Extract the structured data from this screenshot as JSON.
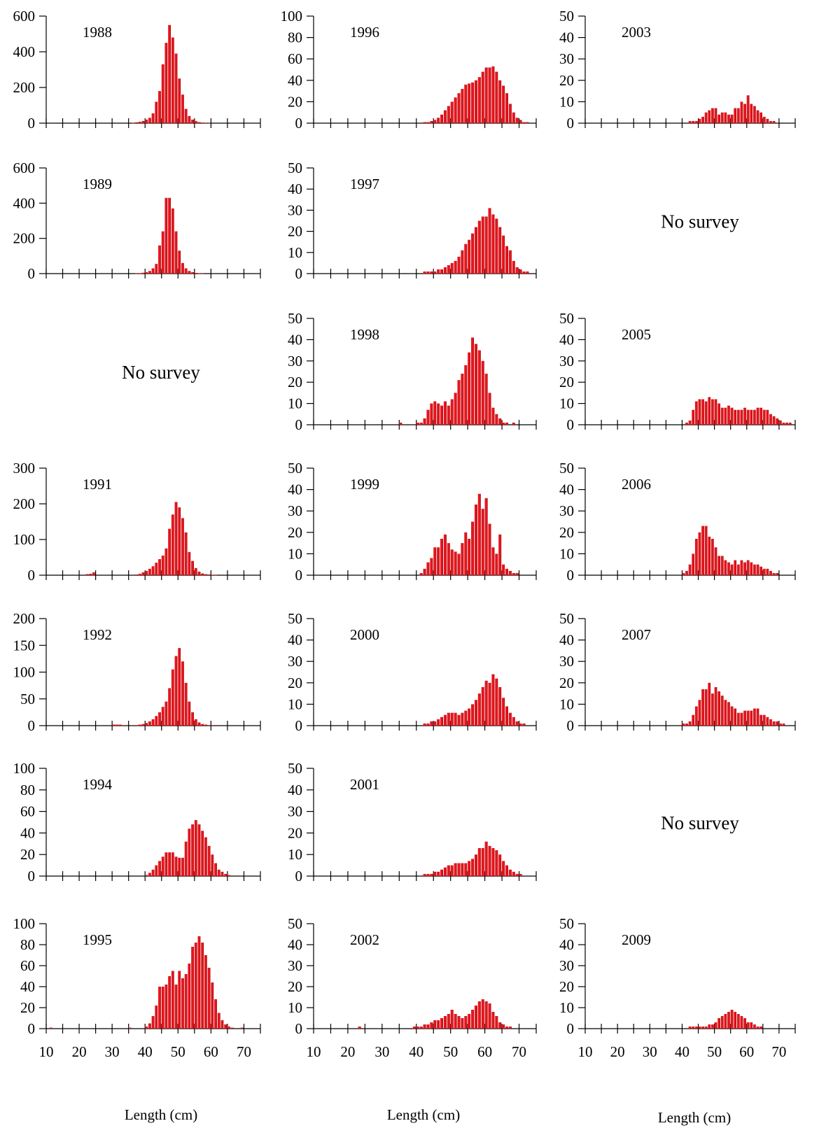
{
  "figure": {
    "bar_color": "#e8141c",
    "bar_edge_color": "#8b0000",
    "xlabel": "Length (cm)",
    "x_ticks": [
      10,
      20,
      30,
      40,
      50,
      60,
      70
    ],
    "no_survey_text": "No survey"
  },
  "chart_data": [
    {
      "type": "bar",
      "title": "1988",
      "col": 0,
      "row": 0,
      "bin_start": 10,
      "bin_width": 1,
      "ylim": [
        0,
        600
      ],
      "yticks": [
        0,
        200,
        400,
        600
      ],
      "show_x_labels": false,
      "values": [
        0,
        0,
        0,
        0,
        0,
        0,
        0,
        0,
        0,
        0,
        0,
        0,
        0,
        0,
        0,
        0,
        0,
        0,
        0,
        0,
        0,
        0,
        0,
        0,
        0,
        0,
        2,
        5,
        8,
        12,
        20,
        30,
        55,
        120,
        180,
        330,
        450,
        550,
        480,
        390,
        250,
        160,
        80,
        40,
        20,
        12,
        6,
        3,
        2,
        1,
        0,
        0,
        0,
        0,
        0,
        0,
        0,
        0,
        0,
        0,
        0,
        0,
        0,
        0
      ]
    },
    {
      "type": "bar",
      "title": "1989",
      "col": 0,
      "row": 1,
      "bin_start": 10,
      "bin_width": 1,
      "ylim": [
        0,
        600
      ],
      "yticks": [
        0,
        200,
        400,
        600
      ],
      "show_x_labels": false,
      "values": [
        0,
        0,
        0,
        0,
        0,
        0,
        0,
        0,
        0,
        0,
        0,
        0,
        0,
        0,
        0,
        0,
        0,
        0,
        0,
        0,
        0,
        0,
        0,
        0,
        0,
        0,
        0,
        1,
        2,
        5,
        8,
        15,
        30,
        55,
        160,
        240,
        430,
        430,
        370,
        240,
        130,
        60,
        30,
        15,
        8,
        4,
        2,
        1,
        0,
        0,
        0,
        0,
        0,
        0,
        0,
        0,
        0,
        0,
        0,
        0,
        0,
        0,
        0,
        0
      ]
    },
    {
      "type": "bar",
      "title": "1991",
      "col": 0,
      "row": 3,
      "bin_start": 10,
      "bin_width": 1,
      "ylim": [
        0,
        300
      ],
      "yticks": [
        0,
        100,
        200,
        300
      ],
      "show_x_labels": false,
      "values": [
        0,
        0,
        0,
        0,
        0,
        0,
        0,
        0,
        0,
        0,
        0,
        0,
        3,
        4,
        8,
        0,
        0,
        0,
        0,
        0,
        0,
        0,
        0,
        0,
        0,
        0,
        0,
        2,
        4,
        8,
        12,
        18,
        25,
        35,
        45,
        55,
        75,
        130,
        170,
        205,
        190,
        160,
        120,
        65,
        40,
        20,
        10,
        5,
        3,
        2,
        1,
        1,
        0,
        0,
        0,
        0,
        0,
        0,
        0,
        0,
        0,
        0,
        0,
        0
      ]
    },
    {
      "type": "bar",
      "title": "1992",
      "col": 0,
      "row": 4,
      "bin_start": 10,
      "bin_width": 1,
      "ylim": [
        0,
        200
      ],
      "yticks": [
        0,
        50,
        100,
        150,
        200
      ],
      "show_x_labels": false,
      "values": [
        0,
        0,
        0,
        0,
        0,
        0,
        0,
        0,
        0,
        0,
        0,
        0,
        0,
        0,
        0,
        0,
        0,
        0,
        0,
        0,
        2,
        2,
        2,
        1,
        0,
        0,
        1,
        1,
        2,
        3,
        5,
        8,
        12,
        18,
        25,
        35,
        45,
        70,
        105,
        130,
        145,
        120,
        80,
        45,
        25,
        12,
        6,
        3,
        2,
        1,
        1,
        0,
        0,
        0,
        0,
        0,
        0,
        0,
        0,
        0,
        0,
        0,
        0,
        0
      ]
    },
    {
      "type": "bar",
      "title": "1994",
      "col": 0,
      "row": 5,
      "bin_start": 10,
      "bin_width": 1,
      "ylim": [
        0,
        100
      ],
      "yticks": [
        0,
        20,
        40,
        60,
        80,
        100
      ],
      "show_x_labels": false,
      "values": [
        0,
        0,
        0,
        0,
        0,
        0,
        0,
        0,
        0,
        0,
        0,
        0,
        0,
        0,
        0,
        0,
        0,
        0,
        0,
        0,
        0,
        0,
        0,
        0,
        0,
        0,
        0,
        0,
        0,
        0,
        1,
        3,
        6,
        10,
        14,
        18,
        22,
        22,
        22,
        18,
        17,
        17,
        32,
        44,
        48,
        52,
        48,
        42,
        36,
        28,
        20,
        12,
        6,
        4,
        2,
        1,
        0,
        0,
        0,
        0,
        0,
        0,
        0,
        0
      ]
    },
    {
      "type": "bar",
      "title": "1995",
      "col": 0,
      "row": 6,
      "bin_start": 10,
      "bin_width": 1,
      "ylim": [
        0,
        100
      ],
      "yticks": [
        0,
        20,
        40,
        60,
        80,
        100
      ],
      "show_x_labels": true,
      "values": [
        0,
        1,
        0,
        0,
        0,
        0,
        0,
        0,
        0,
        0,
        0,
        0,
        0,
        0,
        0,
        0,
        0,
        0,
        0,
        0,
        0,
        0,
        0,
        0,
        0,
        1,
        0,
        0,
        0,
        0,
        2,
        5,
        12,
        22,
        40,
        40,
        42,
        50,
        55,
        42,
        55,
        48,
        52,
        62,
        78,
        82,
        88,
        82,
        70,
        58,
        44,
        28,
        15,
        8,
        4,
        2,
        1,
        0,
        0,
        1,
        0,
        0,
        0,
        0
      ]
    },
    {
      "type": "bar",
      "title": "1996",
      "col": 1,
      "row": 0,
      "bin_start": 10,
      "bin_width": 1,
      "ylim": [
        0,
        100
      ],
      "yticks": [
        0,
        20,
        40,
        60,
        80,
        100
      ],
      "show_x_labels": false,
      "values": [
        0,
        0,
        0,
        0,
        0,
        0,
        0,
        0,
        0,
        0,
        0,
        0,
        0,
        0,
        0,
        0,
        0,
        0,
        0,
        0,
        0,
        0,
        0,
        0,
        0,
        0,
        0,
        0,
        0,
        0,
        0,
        0,
        1,
        1,
        2,
        3,
        5,
        8,
        12,
        16,
        20,
        24,
        28,
        32,
        36,
        37,
        38,
        40,
        43,
        48,
        52,
        52,
        53,
        48,
        40,
        35,
        28,
        18,
        10,
        5,
        3,
        1,
        1,
        0
      ]
    },
    {
      "type": "bar",
      "title": "1997",
      "col": 1,
      "row": 1,
      "bin_start": 10,
      "bin_width": 1,
      "ylim": [
        0,
        50
      ],
      "yticks": [
        0,
        10,
        20,
        30,
        40,
        50
      ],
      "show_x_labels": false,
      "values": [
        0,
        0,
        0,
        0,
        0,
        0,
        0,
        0,
        0,
        0,
        0,
        0,
        0,
        0,
        0,
        0,
        0,
        0,
        0,
        0,
        0,
        0,
        0,
        0,
        0,
        0,
        0,
        0,
        0,
        0,
        0,
        0,
        1,
        1,
        1,
        1,
        2,
        2,
        3,
        4,
        5,
        6,
        8,
        11,
        14,
        16,
        19,
        22,
        25,
        27,
        27,
        31,
        28,
        26,
        22,
        18,
        13,
        11,
        6,
        3,
        2,
        1,
        1,
        0
      ]
    },
    {
      "type": "bar",
      "title": "1998",
      "col": 1,
      "row": 2,
      "bin_start": 10,
      "bin_width": 1,
      "ylim": [
        0,
        50
      ],
      "yticks": [
        0,
        10,
        20,
        30,
        40,
        50
      ],
      "show_x_labels": false,
      "values": [
        0,
        0,
        0,
        0,
        0,
        0,
        0,
        0,
        0,
        0,
        0,
        0,
        0,
        0,
        0,
        0,
        0,
        0,
        0,
        0,
        0,
        0,
        0,
        0,
        0,
        1,
        0,
        0,
        0,
        0,
        1,
        1,
        3,
        7,
        10,
        11,
        10,
        9,
        11,
        9,
        12,
        15,
        21,
        24,
        28,
        34,
        41,
        38,
        35,
        30,
        24,
        15,
        8,
        5,
        3,
        1,
        1,
        0,
        1,
        0,
        0,
        0,
        0,
        0
      ]
    },
    {
      "type": "bar",
      "title": "1999",
      "col": 1,
      "row": 3,
      "bin_start": 10,
      "bin_width": 1,
      "ylim": [
        0,
        50
      ],
      "yticks": [
        0,
        10,
        20,
        30,
        40,
        50
      ],
      "show_x_labels": false,
      "values": [
        0,
        0,
        0,
        0,
        0,
        0,
        0,
        0,
        0,
        0,
        0,
        0,
        0,
        0,
        0,
        0,
        0,
        0,
        0,
        0,
        0,
        0,
        0,
        0,
        0,
        0,
        0,
        0,
        0,
        0,
        0,
        1,
        3,
        6,
        8,
        13,
        13,
        17,
        19,
        15,
        12,
        11,
        10,
        15,
        20,
        17,
        25,
        33,
        38,
        31,
        36,
        24,
        13,
        10,
        19,
        5,
        3,
        2,
        1,
        1,
        0,
        0,
        0,
        0
      ]
    },
    {
      "type": "bar",
      "title": "2000",
      "col": 1,
      "row": 4,
      "bin_start": 10,
      "bin_width": 1,
      "ylim": [
        0,
        50
      ],
      "yticks": [
        0,
        10,
        20,
        30,
        40,
        50
      ],
      "show_x_labels": false,
      "values": [
        0,
        0,
        0,
        0,
        0,
        0,
        0,
        0,
        0,
        0,
        0,
        0,
        0,
        0,
        0,
        0,
        0,
        0,
        0,
        0,
        0,
        0,
        0,
        0,
        0,
        0,
        0,
        0,
        0,
        0,
        0,
        0,
        1,
        1,
        2,
        2,
        3,
        4,
        5,
        6,
        6,
        6,
        5,
        6,
        7,
        8,
        10,
        12,
        15,
        18,
        21,
        20,
        24,
        22,
        18,
        13,
        9,
        6,
        4,
        2,
        1,
        1,
        0,
        0
      ]
    },
    {
      "type": "bar",
      "title": "2001",
      "col": 1,
      "row": 5,
      "bin_start": 10,
      "bin_width": 1,
      "ylim": [
        0,
        50
      ],
      "yticks": [
        0,
        10,
        20,
        30,
        40,
        50
      ],
      "show_x_labels": false,
      "values": [
        0,
        0,
        0,
        0,
        0,
        0,
        0,
        0,
        0,
        0,
        0,
        0,
        0,
        0,
        0,
        0,
        0,
        0,
        0,
        0,
        0,
        0,
        0,
        0,
        0,
        0,
        0,
        0,
        0,
        0,
        0,
        0,
        1,
        1,
        1,
        2,
        2,
        3,
        4,
        5,
        5,
        6,
        6,
        6,
        6,
        7,
        8,
        10,
        13,
        13,
        16,
        14,
        13,
        12,
        10,
        7,
        5,
        3,
        2,
        1,
        1,
        0,
        0,
        0
      ]
    },
    {
      "type": "bar",
      "title": "2002",
      "col": 1,
      "row": 6,
      "bin_start": 10,
      "bin_width": 1,
      "ylim": [
        0,
        50
      ],
      "yticks": [
        0,
        10,
        20,
        30,
        40,
        50
      ],
      "show_x_labels": true,
      "values": [
        0,
        0,
        0,
        0,
        0,
        0,
        0,
        0,
        0,
        0,
        0,
        0,
        0,
        1,
        0,
        0,
        0,
        0,
        0,
        0,
        0,
        0,
        0,
        0,
        0,
        0,
        0,
        0,
        0,
        1,
        1,
        1,
        2,
        2,
        3,
        4,
        4,
        5,
        6,
        7,
        9,
        7,
        6,
        5,
        6,
        7,
        9,
        11,
        13,
        14,
        13,
        12,
        8,
        6,
        3,
        2,
        1,
        1,
        0,
        0,
        0,
        0,
        0,
        0
      ]
    },
    {
      "type": "bar",
      "title": "2003",
      "col": 2,
      "row": 0,
      "bin_start": 10,
      "bin_width": 1,
      "ylim": [
        0,
        50
      ],
      "yticks": [
        0,
        10,
        20,
        30,
        40,
        50
      ],
      "show_x_labels": false,
      "values": [
        0,
        0,
        0,
        0,
        0,
        0,
        0,
        0,
        0,
        0,
        0,
        0,
        0,
        0,
        0,
        0,
        0,
        0,
        0,
        0,
        0,
        0,
        0,
        0,
        0,
        0,
        0,
        0,
        0,
        0,
        0,
        0,
        1,
        1,
        1,
        2,
        3,
        5,
        6,
        7,
        7,
        4,
        5,
        5,
        4,
        4,
        7,
        7,
        10,
        9,
        13,
        9,
        8,
        6,
        5,
        3,
        2,
        1,
        1,
        0,
        0,
        0,
        0,
        0
      ]
    },
    {
      "type": "bar",
      "title": "2005",
      "col": 2,
      "row": 2,
      "bin_start": 10,
      "bin_width": 1,
      "ylim": [
        0,
        50
      ],
      "yticks": [
        0,
        10,
        20,
        30,
        40,
        50
      ],
      "show_x_labels": false,
      "values": [
        0,
        0,
        0,
        0,
        0,
        0,
        0,
        0,
        0,
        0,
        0,
        0,
        0,
        0,
        0,
        0,
        0,
        0,
        0,
        0,
        0,
        0,
        0,
        0,
        0,
        0,
        0,
        0,
        0,
        0,
        0,
        1,
        2,
        7,
        11,
        12,
        12,
        11,
        13,
        12,
        12,
        10,
        8,
        8,
        9,
        8,
        7,
        7,
        7,
        8,
        7,
        7,
        7,
        8,
        8,
        7,
        7,
        5,
        4,
        3,
        2,
        1,
        1,
        1
      ]
    },
    {
      "type": "bar",
      "title": "2006",
      "col": 2,
      "row": 3,
      "bin_start": 10,
      "bin_width": 1,
      "ylim": [
        0,
        50
      ],
      "yticks": [
        0,
        10,
        20,
        30,
        40,
        50
      ],
      "show_x_labels": false,
      "values": [
        0,
        0,
        0,
        0,
        0,
        0,
        0,
        0,
        0,
        0,
        0,
        0,
        0,
        0,
        0,
        0,
        0,
        0,
        0,
        0,
        0,
        0,
        0,
        0,
        0,
        0,
        0,
        0,
        0,
        0,
        1,
        2,
        5,
        10,
        17,
        20,
        23,
        23,
        18,
        17,
        13,
        9,
        9,
        7,
        6,
        5,
        7,
        5,
        7,
        6,
        7,
        6,
        5,
        5,
        4,
        3,
        3,
        2,
        1,
        1,
        0,
        0,
        0,
        0
      ]
    },
    {
      "type": "bar",
      "title": "2007",
      "col": 2,
      "row": 4,
      "bin_start": 10,
      "bin_width": 1,
      "ylim": [
        0,
        50
      ],
      "yticks": [
        0,
        10,
        20,
        30,
        40,
        50
      ],
      "show_x_labels": false,
      "values": [
        0,
        0,
        0,
        0,
        0,
        0,
        0,
        0,
        0,
        0,
        0,
        0,
        0,
        0,
        0,
        0,
        0,
        0,
        0,
        0,
        0,
        0,
        0,
        0,
        0,
        0,
        0,
        0,
        0,
        0,
        1,
        1,
        2,
        5,
        9,
        12,
        17,
        17,
        20,
        15,
        18,
        16,
        14,
        12,
        11,
        9,
        8,
        6,
        6,
        7,
        7,
        7,
        8,
        8,
        5,
        5,
        4,
        3,
        2,
        2,
        1,
        1,
        0,
        0
      ]
    },
    {
      "type": "bar",
      "title": "2009",
      "col": 2,
      "row": 6,
      "bin_start": 10,
      "bin_width": 1,
      "ylim": [
        0,
        50
      ],
      "yticks": [
        0,
        10,
        20,
        30,
        40,
        50
      ],
      "show_x_labels": true,
      "values": [
        0,
        0,
        0,
        0,
        0,
        0,
        0,
        0,
        0,
        0,
        0,
        0,
        0,
        0,
        0,
        0,
        0,
        0,
        0,
        0,
        0,
        0,
        0,
        0,
        0,
        0,
        0,
        0,
        0,
        0,
        0,
        0,
        1,
        1,
        1,
        1,
        1,
        1,
        2,
        2,
        3,
        5,
        6,
        7,
        8,
        9,
        8,
        7,
        6,
        5,
        3,
        3,
        2,
        1,
        1,
        0,
        0,
        0,
        0,
        0,
        0,
        0,
        0,
        0
      ]
    }
  ],
  "no_survey_panels": [
    {
      "col": 2,
      "row": 1
    },
    {
      "col": 0,
      "row": 2
    },
    {
      "col": 2,
      "row": 5
    }
  ]
}
